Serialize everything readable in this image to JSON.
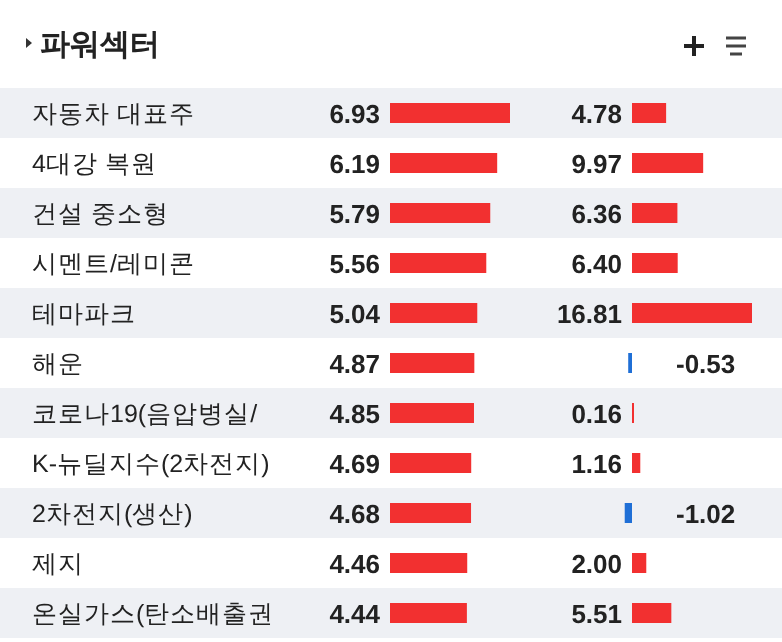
{
  "chart_data": [
    {
      "type": "bar",
      "title": "파워섹터",
      "orientation": "horizontal",
      "categories": [
        "자동차 대표주",
        "4대강 복원",
        "건설 중소형",
        "시멘트/레미콘",
        "테마파크",
        "해운",
        "코로나19(음압병실/",
        "K-뉴딜지수(2차전지)",
        "2차전지(생산)",
        "제지",
        "온실가스(탄소배출권"
      ],
      "values": [
        6.93,
        6.19,
        5.79,
        5.56,
        5.04,
        4.87,
        4.85,
        4.69,
        4.68,
        4.46,
        4.44
      ],
      "value_labels": [
        "6.93",
        "6.19",
        "5.79",
        "5.56",
        "5.04",
        "4.87",
        "4.85",
        "4.69",
        "4.68",
        "4.46",
        "4.44"
      ],
      "colors": [
        "#f23030",
        "#f23030",
        "#f23030",
        "#f23030",
        "#f23030",
        "#f23030",
        "#f23030",
        "#f23030",
        "#f23030",
        "#f23030",
        "#f23030"
      ]
    },
    {
      "type": "bar",
      "orientation": "horizontal",
      "categories": [
        null,
        null,
        null,
        null,
        null,
        null,
        null,
        null,
        null,
        null,
        null
      ],
      "values": [
        4.78,
        9.97,
        6.36,
        6.4,
        16.81,
        -0.53,
        0.16,
        1.16,
        -1.02,
        2.0,
        5.51
      ],
      "value_labels": [
        "4.78",
        "9.97",
        "6.36",
        "6.40",
        "16.81",
        "-0.53",
        "0.16",
        "1.16",
        "-1.02",
        "2.00",
        "5.51"
      ],
      "colors": [
        "#f23030",
        "#f23030",
        "#f23030",
        "#f23030",
        "#f23030",
        "#1f6fd6",
        "#f23030",
        "#f23030",
        "#1f6fd6",
        "#f23030",
        "#f23030"
      ]
    }
  ]
}
